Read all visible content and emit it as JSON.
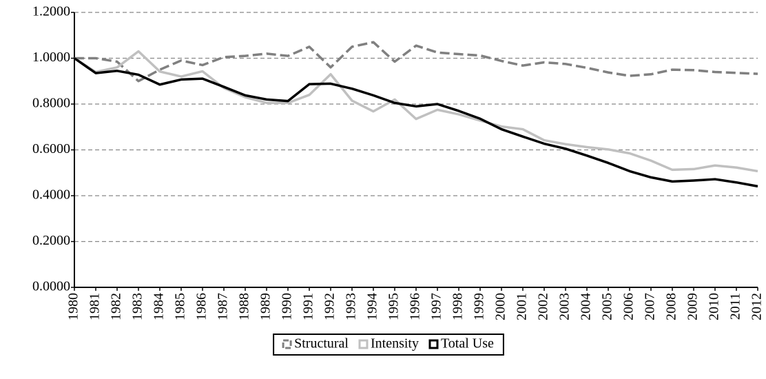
{
  "chart_data": {
    "type": "line",
    "categories": [
      "1980",
      "1981",
      "1982",
      "1983",
      "1984",
      "1985",
      "1986",
      "1987",
      "1988",
      "1989",
      "1990",
      "1991",
      "1992",
      "1993",
      "1994",
      "1995",
      "1996",
      "1997",
      "1998",
      "1999",
      "2000",
      "2001",
      "2002",
      "2003",
      "2004",
      "2005",
      "2006",
      "2007",
      "2008",
      "2009",
      "2010",
      "2011",
      "2012"
    ],
    "series": [
      {
        "name": "Structural",
        "color": "#808080",
        "dashed": true,
        "values": [
          1.0,
          1.0,
          0.985,
          0.9,
          0.95,
          0.99,
          0.97,
          1.005,
          1.01,
          1.02,
          1.01,
          1.05,
          0.96,
          1.05,
          1.07,
          0.985,
          1.055,
          1.025,
          1.018,
          1.012,
          0.988,
          0.968,
          0.982,
          0.975,
          0.958,
          0.938,
          0.923,
          0.93,
          0.95,
          0.948,
          0.94,
          0.936,
          0.932
        ]
      },
      {
        "name": "Intensity",
        "color": "#c0c0c0",
        "dashed": false,
        "values": [
          1.0,
          0.94,
          0.96,
          1.03,
          0.942,
          0.92,
          0.943,
          0.87,
          0.83,
          0.805,
          0.805,
          0.84,
          0.93,
          0.815,
          0.768,
          0.82,
          0.735,
          0.775,
          0.755,
          0.728,
          0.702,
          0.69,
          0.642,
          0.625,
          0.612,
          0.602,
          0.585,
          0.553,
          0.513,
          0.516,
          0.532,
          0.523,
          0.507
        ]
      },
      {
        "name": "Total Use",
        "color": "#000000",
        "dashed": false,
        "values": [
          1.0,
          0.935,
          0.945,
          0.928,
          0.885,
          0.907,
          0.911,
          0.875,
          0.838,
          0.82,
          0.813,
          0.887,
          0.889,
          0.867,
          0.838,
          0.805,
          0.79,
          0.8,
          0.77,
          0.736,
          0.69,
          0.658,
          0.627,
          0.605,
          0.575,
          0.543,
          0.507,
          0.48,
          0.462,
          0.466,
          0.472,
          0.458,
          0.441
        ]
      }
    ],
    "ylim": [
      0,
      1.2
    ],
    "yticks": [
      {
        "value": 0,
        "label": "0.0000"
      },
      {
        "value": 0.2,
        "label": "0.2000"
      },
      {
        "value": 0.4,
        "label": "0.4000"
      },
      {
        "value": 0.6,
        "label": "0.6000"
      },
      {
        "value": 0.8,
        "label": "0.8000"
      },
      {
        "value": 1.0,
        "label": "1.0000"
      },
      {
        "value": 1.2,
        "label": "1.2000"
      }
    ],
    "grid": true,
    "legend": "bottom"
  }
}
